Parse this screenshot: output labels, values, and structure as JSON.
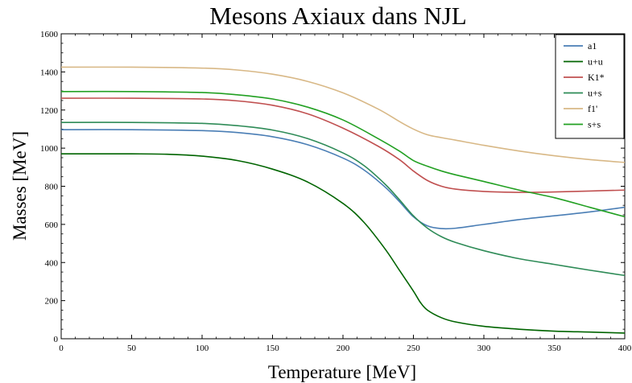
{
  "chart_data": {
    "type": "line",
    "title": "Mesons Axiaux dans NJL",
    "xlabel": "Temperature [MeV]",
    "ylabel": "Masses [MeV]",
    "xlim": [
      0,
      400
    ],
    "ylim": [
      0,
      1600
    ],
    "xticks": [
      0,
      50,
      100,
      150,
      200,
      250,
      300,
      350,
      400
    ],
    "yticks": [
      0,
      200,
      400,
      600,
      800,
      1000,
      1200,
      1400,
      1600
    ],
    "grid": false,
    "legend_position": "top-right",
    "series": [
      {
        "name": "a1",
        "color": "#4a7eb5",
        "x": [
          0,
          50,
          100,
          125,
          150,
          175,
          200,
          215,
          230,
          240,
          250,
          260,
          270,
          280,
          300,
          325,
          350,
          375,
          400
        ],
        "y": [
          1097,
          1097,
          1092,
          1082,
          1060,
          1018,
          948,
          885,
          795,
          720,
          640,
          592,
          578,
          580,
          600,
          625,
          645,
          665,
          690
        ]
      },
      {
        "name": "u+u",
        "color": "#006400",
        "x": [
          0,
          50,
          75,
          100,
          125,
          150,
          175,
          200,
          215,
          230,
          240,
          250,
          255,
          260,
          270,
          280,
          300,
          325,
          350,
          375,
          400
        ],
        "y": [
          970,
          970,
          968,
          958,
          935,
          890,
          822,
          710,
          610,
          470,
          360,
          250,
          190,
          150,
          110,
          88,
          65,
          50,
          40,
          35,
          30
        ]
      },
      {
        "name": "K1*",
        "color": "#c05050",
        "x": [
          0,
          50,
          100,
          125,
          150,
          175,
          200,
          225,
          240,
          250,
          260,
          270,
          280,
          300,
          325,
          350,
          375,
          400
        ],
        "y": [
          1262,
          1262,
          1258,
          1248,
          1225,
          1180,
          1105,
          1010,
          940,
          880,
          830,
          800,
          785,
          773,
          768,
          770,
          775,
          780
        ]
      },
      {
        "name": "u+s",
        "color": "#2e8b57",
        "x": [
          0,
          50,
          100,
          125,
          150,
          175,
          200,
          215,
          230,
          240,
          250,
          260,
          270,
          280,
          300,
          325,
          350,
          375,
          400
        ],
        "y": [
          1135,
          1135,
          1130,
          1118,
          1095,
          1050,
          975,
          908,
          810,
          730,
          645,
          580,
          535,
          505,
          462,
          420,
          390,
          360,
          332
        ]
      },
      {
        "name": "f1'",
        "color": "#d8b886",
        "x": [
          0,
          50,
          100,
          125,
          150,
          175,
          200,
          225,
          240,
          250,
          260,
          270,
          280,
          300,
          325,
          350,
          375,
          400
        ],
        "y": [
          1425,
          1425,
          1420,
          1410,
          1388,
          1350,
          1290,
          1205,
          1140,
          1100,
          1070,
          1055,
          1042,
          1015,
          985,
          960,
          940,
          925
        ]
      },
      {
        "name": "s+s",
        "color": "#22a022",
        "x": [
          0,
          50,
          100,
          125,
          150,
          175,
          200,
          225,
          240,
          250,
          260,
          270,
          280,
          300,
          325,
          350,
          375,
          400
        ],
        "y": [
          1297,
          1297,
          1292,
          1280,
          1258,
          1215,
          1148,
          1050,
          985,
          935,
          905,
          880,
          860,
          825,
          780,
          740,
          690,
          640
        ]
      }
    ]
  }
}
